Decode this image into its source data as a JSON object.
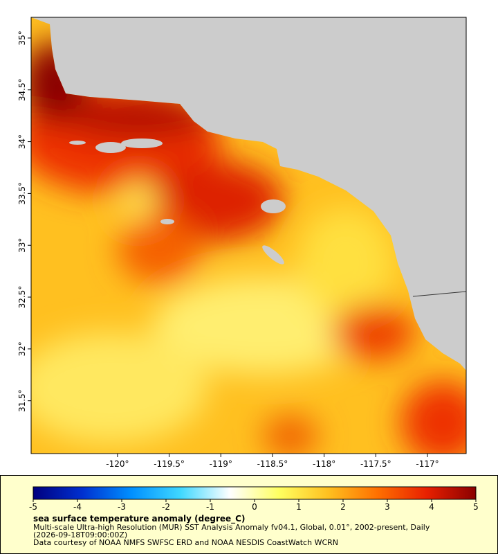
{
  "map": {
    "xlim": [
      -120.836,
      -116.625
    ],
    "ylim": [
      30.99,
      35.2
    ],
    "xticks": [
      {
        "value": -120,
        "label": "-120°"
      },
      {
        "value": -119.5,
        "label": "-119.5°"
      },
      {
        "value": -119,
        "label": "-119°"
      },
      {
        "value": -118.5,
        "label": "-118.5°"
      },
      {
        "value": -118,
        "label": "-118°"
      },
      {
        "value": -117.5,
        "label": "-117.5°"
      },
      {
        "value": -117,
        "label": "-117°"
      }
    ],
    "yticks": [
      {
        "value": 31.5,
        "label": "31.5°"
      },
      {
        "value": 32,
        "label": "32°"
      },
      {
        "value": 32.5,
        "label": "32.5°"
      },
      {
        "value": 33,
        "label": "33°"
      },
      {
        "value": 33.5,
        "label": "33.5°"
      },
      {
        "value": 34,
        "label": "34°"
      },
      {
        "value": 34.5,
        "label": "34.5°"
      },
      {
        "value": 35,
        "label": "35°"
      }
    ]
  },
  "colorbar": {
    "lim": [
      -5,
      5
    ],
    "ticks": [
      -5,
      -4,
      -3,
      -2,
      -1,
      0,
      1,
      2,
      3,
      4,
      5
    ],
    "colors": [
      "#00007f",
      "#0030d0",
      "#0090ff",
      "#40d8ff",
      "#ffffff",
      "#ffff60",
      "#ffc020",
      "#ff7000",
      "#e82000",
      "#8a0000"
    ]
  },
  "legend": {
    "title": "sea surface temperature anomaly (degree_C)",
    "line1": "Multi-scale Ultra-high Resolution (MUR) SST Analysis Anomaly fv04.1, Global, 0.01°, 2002-present, Daily",
    "line2": "(2026-09-18T09:00:00Z)",
    "line3": "Data courtesy of NOAA NMFS SWFSC ERD and NOAA NESDIS CoastWatch WCRN"
  }
}
